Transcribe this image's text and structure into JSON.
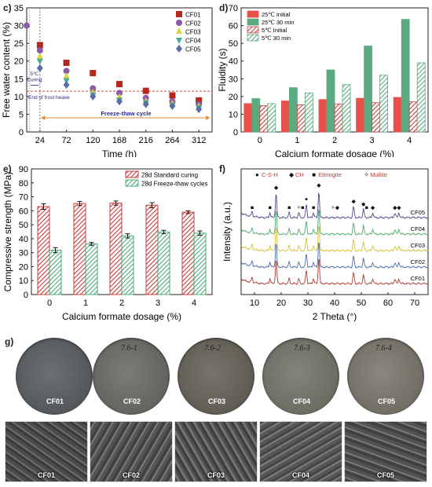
{
  "panels": {
    "c": {
      "letter": "c)",
      "type": "scatter",
      "xlabel": "Time (h)",
      "ylabel": "Free water content (%)",
      "xlim": [
        0,
        336
      ],
      "ylim": [
        0,
        35
      ],
      "xticks": [
        24,
        72,
        120,
        168,
        216,
        264,
        312
      ],
      "yticks": [
        0,
        5,
        10,
        15,
        20,
        25,
        30,
        35
      ],
      "legend": "top-right",
      "series": [
        {
          "name": "CF01",
          "color": "#b5281e",
          "marker": "square",
          "x": [
            24,
            72,
            120,
            168,
            216,
            264,
            312
          ],
          "y": [
            24.5,
            19.5,
            16.6,
            13.5,
            11.6,
            10.3,
            8.9
          ]
        },
        {
          "name": "CF02",
          "color": "#8b5aa8",
          "marker": "circle",
          "x": [
            0,
            24,
            72,
            120,
            168,
            216,
            264,
            312
          ],
          "y": [
            30.0,
            23.0,
            17.2,
            12.3,
            11.0,
            9.6,
            8.6,
            7.8
          ]
        },
        {
          "name": "CF03",
          "color": "#d9d43a",
          "marker": "triangle-up",
          "x": [
            24,
            72,
            120,
            168,
            216,
            264,
            312
          ],
          "y": [
            21.3,
            15.7,
            11.1,
            9.8,
            8.6,
            8.0,
            7.2
          ]
        },
        {
          "name": "CF04",
          "color": "#4cab9a",
          "marker": "triangle-down",
          "x": [
            24,
            72,
            120,
            168,
            216,
            264,
            312
          ],
          "y": [
            20.0,
            14.5,
            10.5,
            9.0,
            8.2,
            7.5,
            6.8
          ]
        },
        {
          "name": "CF05",
          "color": "#5a6fa8",
          "marker": "diamond",
          "x": [
            24,
            72,
            120,
            168,
            216,
            264,
            312
          ],
          "y": [
            18.0,
            13.3,
            10.0,
            8.6,
            7.8,
            7.3,
            6.4
          ]
        }
      ],
      "annotations": {
        "curing": "5℃\nCuring",
        "frost_heave": "End of frost heave",
        "frost_heave_y": 11.5,
        "cycle": "Freeze-thaw cycle"
      }
    },
    "d": {
      "letter": "d)",
      "type": "bar",
      "xlabel": "Calcium formate dosage (%)",
      "ylabel": "Fluidity (s)",
      "categories": [
        "0",
        "1",
        "2",
        "3",
        "4"
      ],
      "ylim": [
        0,
        70
      ],
      "yticks": [
        0,
        10,
        20,
        30,
        40,
        50,
        60,
        70
      ],
      "legend": "top-left",
      "series": [
        {
          "name": "25℃ Initial",
          "color": "#e8504a",
          "pattern": "solid",
          "values": [
            16.0,
            17.5,
            18.3,
            19.0,
            19.5
          ]
        },
        {
          "name": "25℃ 30 min",
          "color": "#5aab80",
          "pattern": "solid",
          "values": [
            18.8,
            25.0,
            35.0,
            48.5,
            63.5
          ]
        },
        {
          "name": "5℃ Initial",
          "color": "#c83c3c",
          "pattern": "hatch",
          "values": [
            14.8,
            15.3,
            15.8,
            16.5,
            17.0
          ]
        },
        {
          "name": "5℃ 30 min",
          "color": "#5aab80",
          "pattern": "hatch",
          "values": [
            16.0,
            22.0,
            26.7,
            32.0,
            39.0
          ]
        }
      ]
    },
    "e": {
      "letter": "e)",
      "type": "bar",
      "xlabel": "Calcium formate dosage (%)",
      "ylabel": "Compressive strength (MPa)",
      "categories": [
        "0",
        "1",
        "2",
        "3",
        "4"
      ],
      "ylim": [
        0,
        90
      ],
      "yticks": [
        0,
        10,
        20,
        30,
        40,
        50,
        60,
        70,
        80,
        90
      ],
      "legend": "top-right",
      "series": [
        {
          "name": "28d Standard curing",
          "color": "#c83c3c",
          "pattern": "hatch",
          "values": [
            63.0,
            65.2,
            65.5,
            64.0,
            59.0
          ],
          "errors": [
            2.0,
            1.5,
            1.5,
            1.8,
            1.0
          ]
        },
        {
          "name": "28d Freeze-thaw cycles",
          "color": "#4cab7a",
          "pattern": "hatch",
          "values": [
            31.8,
            36.3,
            42.0,
            44.8,
            44.0
          ],
          "errors": [
            1.8,
            1.0,
            1.5,
            1.2,
            1.5
          ]
        }
      ]
    },
    "f": {
      "letter": "f)",
      "type": "line",
      "xlabel": "2 Theta (°)",
      "ylabel": "Intensity (a.u.)",
      "xlim": [
        5,
        75
      ],
      "xticks": [
        10,
        20,
        30,
        40,
        50,
        60,
        70
      ],
      "legend_items": [
        {
          "symbol": "●",
          "label": "C-S-H",
          "color": "#c0392b"
        },
        {
          "symbol": "◆",
          "label": "CH",
          "color": "#c0392b"
        },
        {
          "symbol": "■",
          "label": "Ettringite",
          "color": "#c0392b"
        },
        {
          "symbol": "✧",
          "label": "Mullite",
          "color": "#c0392b"
        }
      ],
      "series": [
        {
          "name": "CF05",
          "color": "#4a4a8c",
          "offset": 4
        },
        {
          "name": "CF04",
          "color": "#4ca86e",
          "offset": 3
        },
        {
          "name": "CF03",
          "color": "#d8c030",
          "offset": 2
        },
        {
          "name": "CF02",
          "color": "#4a6aa8",
          "offset": 1
        },
        {
          "name": "CF01",
          "color": "#b03a30",
          "offset": 0
        }
      ],
      "peaks": [
        9.1,
        15.8,
        18.1,
        23.0,
        26.6,
        29.4,
        32.1,
        34.1,
        47.1,
        50.8,
        54.3,
        62.6,
        64.1
      ],
      "markers": [
        {
          "x": 9.1,
          "symbol": "■"
        },
        {
          "x": 15.8,
          "symbol": "■"
        },
        {
          "x": 18.1,
          "symbol": "◆"
        },
        {
          "x": 23.0,
          "symbol": "■"
        },
        {
          "x": 26.6,
          "symbol": "✧"
        },
        {
          "x": 28.0,
          "symbol": "■"
        },
        {
          "x": 29.4,
          "symbol": "●"
        },
        {
          "x": 32.1,
          "symbol": "■"
        },
        {
          "x": 34.1,
          "symbol": "◆"
        },
        {
          "x": 39.4,
          "symbol": "✧"
        },
        {
          "x": 41.0,
          "symbol": "◆"
        },
        {
          "x": 47.1,
          "symbol": "◆"
        },
        {
          "x": 50.8,
          "symbol": "◆"
        },
        {
          "x": 52.0,
          "symbol": "■"
        },
        {
          "x": 54.3,
          "symbol": "◆"
        },
        {
          "x": 62.6,
          "symbol": "◆"
        },
        {
          "x": 64.1,
          "symbol": "◆"
        }
      ]
    }
  },
  "panel_g": {
    "letter": "g)",
    "samples": [
      {
        "label": "CF01",
        "note": "",
        "color": "#5a5e60"
      },
      {
        "label": "CF02",
        "note": "7.6-1",
        "color": "#6b6c66"
      },
      {
        "label": "CF03",
        "note": "7.6-2",
        "color": "#67645c"
      },
      {
        "label": "CF04",
        "note": "7.6-3",
        "color": "#74746c"
      },
      {
        "label": "CF05",
        "note": "7.6-4",
        "color": "#7a776e"
      }
    ]
  }
}
